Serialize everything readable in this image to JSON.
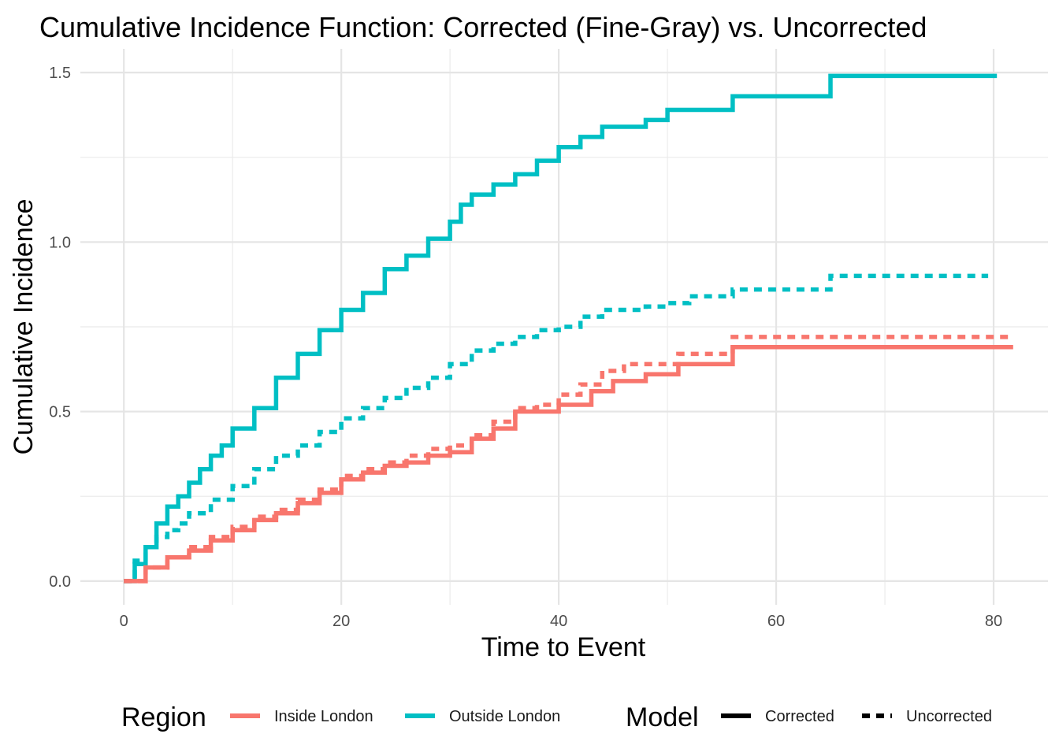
{
  "chart_data": {
    "type": "line",
    "title": "Cumulative Incidence Function: Corrected (Fine-Gray) vs. Uncorrected",
    "xlabel": "Time to Event",
    "ylabel": "Cumulative Incidence",
    "xlim": [
      -4,
      85
    ],
    "ylim": [
      -0.07,
      1.57
    ],
    "xticks": [
      0,
      20,
      40,
      60,
      80
    ],
    "xtick_labels": [
      "0",
      "20",
      "40",
      "60",
      "80"
    ],
    "yticks": [
      0,
      0.5,
      1,
      1.5
    ],
    "ytick_labels": [
      "0.0",
      "0.5",
      "1.0",
      "1.5"
    ],
    "grid": true,
    "legend_position": "bottom",
    "legends": [
      {
        "title": "Region",
        "entries": [
          {
            "label": "Inside London",
            "color": "#F8766D"
          },
          {
            "label": "Outside London",
            "color": "#00BFC4"
          }
        ]
      },
      {
        "title": "Model",
        "entries": [
          {
            "label": "Corrected",
            "dash": "solid"
          },
          {
            "label": "Uncorrected",
            "dash": "dashed"
          }
        ]
      }
    ],
    "series": [
      {
        "region": "Outside London",
        "model": "Corrected",
        "color": "#00BFC4",
        "dash": "solid",
        "step": true,
        "x": [
          0,
          1,
          2,
          3,
          4,
          5,
          6,
          7,
          8,
          9,
          10,
          12,
          14,
          16,
          18,
          20,
          22,
          24,
          26,
          28,
          30,
          31,
          32,
          34,
          36,
          38,
          40,
          42,
          44,
          46,
          48,
          50,
          52,
          54,
          56,
          58,
          60,
          62,
          64,
          65,
          70,
          75,
          80.3
        ],
        "y": [
          0,
          0.05,
          0.1,
          0.17,
          0.22,
          0.25,
          0.29,
          0.33,
          0.37,
          0.4,
          0.45,
          0.51,
          0.6,
          0.67,
          0.74,
          0.8,
          0.85,
          0.92,
          0.96,
          1.01,
          1.06,
          1.11,
          1.14,
          1.17,
          1.2,
          1.24,
          1.28,
          1.31,
          1.34,
          1.34,
          1.36,
          1.39,
          1.39,
          1.39,
          1.43,
          1.43,
          1.43,
          1.43,
          1.43,
          1.49,
          1.49,
          1.49,
          1.49
        ]
      },
      {
        "region": "Outside London",
        "model": "Uncorrected",
        "color": "#00BFC4",
        "dash": "dashed",
        "step": true,
        "x": [
          0,
          1,
          2,
          3,
          4,
          5,
          6,
          8,
          10,
          12,
          14,
          16,
          18,
          20,
          22,
          24,
          26,
          28,
          30,
          32,
          34,
          36,
          38,
          40,
          42,
          44,
          46,
          48,
          50,
          52,
          54,
          56,
          58,
          60,
          62,
          65,
          70,
          75,
          79.5
        ],
        "y": [
          0,
          0.06,
          0.1,
          0.13,
          0.15,
          0.17,
          0.2,
          0.24,
          0.28,
          0.33,
          0.37,
          0.4,
          0.44,
          0.48,
          0.51,
          0.54,
          0.57,
          0.6,
          0.64,
          0.68,
          0.7,
          0.72,
          0.74,
          0.75,
          0.78,
          0.8,
          0.8,
          0.81,
          0.82,
          0.84,
          0.84,
          0.86,
          0.86,
          0.86,
          0.86,
          0.9,
          0.9,
          0.9,
          0.9
        ]
      },
      {
        "region": "Inside London",
        "model": "Corrected",
        "color": "#F8766D",
        "dash": "solid",
        "step": true,
        "x": [
          0,
          2,
          4,
          6,
          8,
          10,
          12,
          14,
          16,
          18,
          20,
          22,
          24,
          26,
          28,
          30,
          32,
          34,
          36,
          38,
          40,
          41,
          43,
          45,
          48,
          50,
          51,
          53,
          55,
          56,
          58,
          60,
          65,
          70,
          75,
          81.8
        ],
        "y": [
          0,
          0.04,
          0.07,
          0.09,
          0.12,
          0.15,
          0.18,
          0.2,
          0.23,
          0.26,
          0.3,
          0.32,
          0.34,
          0.35,
          0.37,
          0.38,
          0.42,
          0.45,
          0.5,
          0.5,
          0.52,
          0.52,
          0.56,
          0.59,
          0.61,
          0.61,
          0.64,
          0.64,
          0.64,
          0.69,
          0.69,
          0.69,
          0.69,
          0.69,
          0.69,
          0.69
        ]
      },
      {
        "region": "Inside London",
        "model": "Uncorrected",
        "color": "#F8766D",
        "dash": "dashed",
        "step": true,
        "x": [
          0,
          2,
          4,
          6,
          8,
          10,
          12,
          14,
          16,
          18,
          20,
          22,
          24,
          26,
          28,
          30,
          32,
          34,
          36,
          38,
          40,
          42,
          44,
          46,
          48,
          50,
          51,
          53,
          55,
          56,
          58,
          60,
          65,
          70,
          75,
          81.8
        ],
        "y": [
          0,
          0.04,
          0.07,
          0.1,
          0.13,
          0.16,
          0.19,
          0.21,
          0.24,
          0.27,
          0.31,
          0.33,
          0.35,
          0.37,
          0.39,
          0.4,
          0.43,
          0.47,
          0.51,
          0.52,
          0.55,
          0.58,
          0.62,
          0.64,
          0.64,
          0.64,
          0.67,
          0.67,
          0.67,
          0.72,
          0.72,
          0.72,
          0.72,
          0.72,
          0.72,
          0.72
        ]
      }
    ]
  }
}
